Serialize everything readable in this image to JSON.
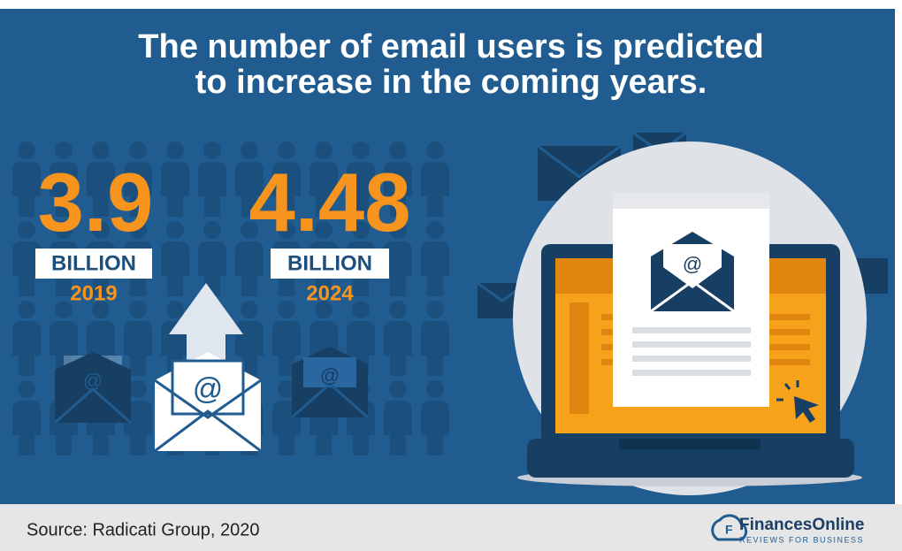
{
  "title_lines": [
    "The number of email users is predicted",
    "to increase in the coming years."
  ],
  "stats": [
    {
      "value": "3.9",
      "unit": "BILLION",
      "year": "2019"
    },
    {
      "value": "4.48",
      "unit": "BILLION",
      "year": "2024"
    }
  ],
  "footer": {
    "source": "Source: Radicati Group, 2020",
    "brand": "FinancesOnline",
    "tagline": "REVIEWS FOR BUSINESS"
  }
}
